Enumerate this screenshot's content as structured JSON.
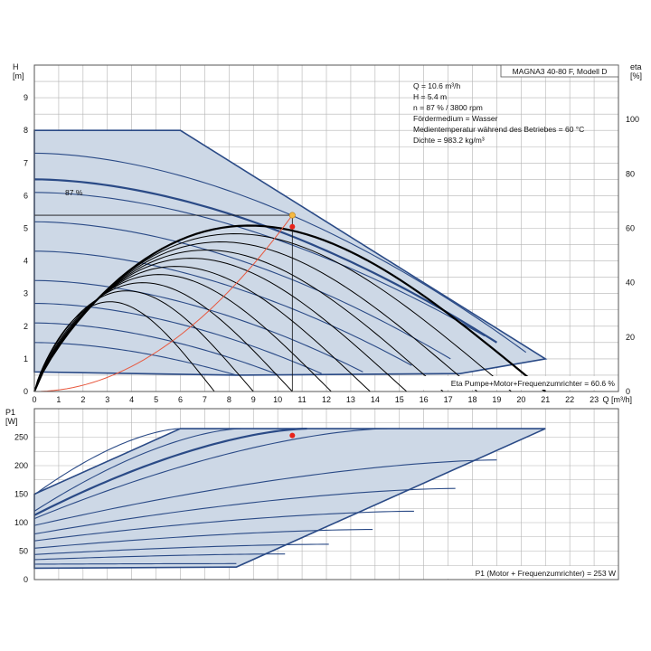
{
  "colors": {
    "envelope_fill": "#cdd8e6",
    "curve_blue": "#2a4a86",
    "grid": "#b3b3b3",
    "efficiency_black": "#000000",
    "system_red": "#e8583e",
    "duty_point_red": "#e8231b",
    "duty_point_yellow": "#f5b942"
  },
  "chart_data": [
    {
      "id": "head",
      "type": "line",
      "title": "MAGNA3 40-80 F, Modell D",
      "ylabel": "H\n[m]",
      "y2label": "eta\n[%]",
      "xlabel": "Q [m³/h]",
      "xlim": [
        0,
        24
      ],
      "ylim": [
        0,
        10
      ],
      "y2lim": [
        0,
        120
      ],
      "xticks": [
        0,
        1,
        2,
        3,
        4,
        5,
        6,
        7,
        8,
        9,
        10,
        11,
        12,
        13,
        14,
        15,
        16,
        17,
        18,
        19,
        20,
        21,
        22,
        23
      ],
      "yticks": [
        0,
        1,
        2,
        3,
        4,
        5,
        6,
        7,
        8,
        9
      ],
      "y2ticks": [
        0,
        20,
        40,
        60,
        80,
        100
      ],
      "grid": true,
      "info_lines": [
        "Q = 10.6 m³/h",
        "H = 5.4 m",
        "n = 87 % / 3800 rpm",
        "Fördermedium = Wasser",
        "Medientemperatur während des Betriebes = 60 °C",
        "Dichte = 983.2 kg/m³"
      ],
      "curve_label": "87 %",
      "eta_note": "Eta Pumpe+Motor+Frequenzumrichter = 60.6 %",
      "envelope": [
        [
          0,
          8
        ],
        [
          6,
          8
        ],
        [
          21,
          1
        ],
        [
          17.5,
          0.55
        ],
        [
          8.3,
          0.5
        ],
        [
          0,
          0.6
        ]
      ],
      "speed_curves": [
        {
          "h0": 7.3,
          "qmax": 20.2,
          "hend": 1.2
        },
        {
          "h0": 6.5,
          "qmax": 19.0,
          "hend": 1.5,
          "highlight": true
        },
        {
          "h0": 6.1,
          "qmax": 18.5,
          "hend": 1.7
        },
        {
          "h0": 5.2,
          "qmax": 17.1,
          "hend": 1.0
        },
        {
          "h0": 4.3,
          "qmax": 15.5,
          "hend": 0.8
        },
        {
          "h0": 3.4,
          "qmax": 13.5,
          "hend": 0.6
        },
        {
          "h0": 2.7,
          "qmax": 11.8,
          "hend": 0.55
        },
        {
          "h0": 2.1,
          "qmax": 10.0,
          "hend": 0.52
        },
        {
          "h0": 1.5,
          "qmax": 8.3,
          "hend": 0.5
        }
      ],
      "efficiency_curves": [
        {
          "qend": 21,
          "peak": 61
        },
        {
          "qend": 19.6,
          "peak": 58
        },
        {
          "qend": 18.2,
          "peak": 55
        },
        {
          "qend": 16.8,
          "peak": 52
        },
        {
          "qend": 15.3,
          "peak": 49
        },
        {
          "qend": 13.8,
          "peak": 46
        },
        {
          "qend": 12.2,
          "peak": 43
        },
        {
          "qend": 10.6,
          "peak": 40
        },
        {
          "qend": 9.0,
          "peak": 37
        },
        {
          "qend": 7.4,
          "peak": 33
        }
      ],
      "system_curve": {
        "k": 0.0481,
        "qmax": 10.6
      },
      "duty_point": {
        "q": 10.6,
        "h": 5.4,
        "eta": 60.6
      }
    },
    {
      "id": "power",
      "type": "line",
      "ylabel": "P1\n[W]",
      "xlim": [
        0,
        24
      ],
      "ylim": [
        0,
        300
      ],
      "yticks": [
        0,
        50,
        100,
        150,
        200,
        250
      ],
      "grid": true,
      "power_note": "P1 (Motor + Frequenzumrichter) = 253 W",
      "envelope": [
        [
          0,
          150
        ],
        [
          6,
          265
        ],
        [
          21,
          265
        ],
        [
          8.3,
          22
        ],
        [
          0,
          20
        ]
      ],
      "power_curves": [
        {
          "p0": 149,
          "q1": 6,
          "p1": 265
        },
        {
          "p0": 120,
          "q1": 8.5,
          "p1": 265
        },
        {
          "p0": 113,
          "q1": 11.2,
          "p1": 265,
          "highlight": true
        },
        {
          "p0": 107,
          "q1": 14.5,
          "p1": 265
        },
        {
          "p0": 95,
          "q1": 19,
          "p1": 210
        },
        {
          "p0": 80,
          "q1": 17.3,
          "p1": 160
        },
        {
          "p0": 68,
          "q1": 15.6,
          "p1": 120
        },
        {
          "p0": 55,
          "q1": 13.9,
          "p1": 88
        },
        {
          "p0": 44,
          "q1": 12.1,
          "p1": 62
        },
        {
          "p0": 35,
          "q1": 10.3,
          "p1": 45
        },
        {
          "p0": 27,
          "q1": 8.3,
          "p1": 28
        }
      ],
      "duty_point": {
        "q": 10.6,
        "p": 253
      }
    }
  ]
}
